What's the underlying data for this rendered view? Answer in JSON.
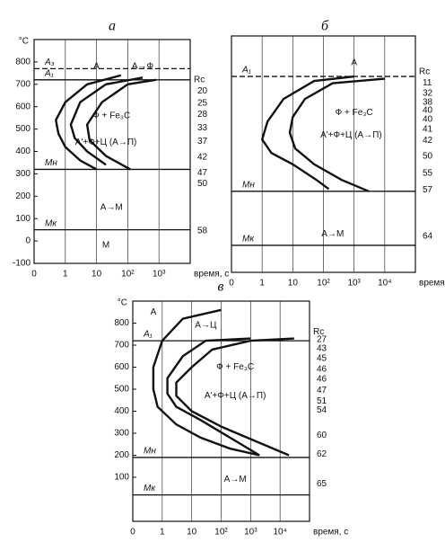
{
  "chart_data": [
    {
      "type": "line",
      "title": "а",
      "ylabel": "°C",
      "xlabel": "время, с",
      "x_origin_label": "0",
      "xscale": "log",
      "xlim": [
        0.1,
        10000
      ],
      "ylim": [
        -100,
        900
      ],
      "xticks": [
        1,
        10,
        {
          "value": 100,
          "label": "10²"
        },
        {
          "value": 1000,
          "label": "10³"
        }
      ],
      "yticks": [
        -100,
        0,
        100,
        200,
        300,
        400,
        500,
        600,
        700,
        800
      ],
      "grid": "x",
      "series": [
        {
          "color": "#111",
          "x": [
            60,
            5,
            1,
            0.5,
            0.6,
            1,
            3,
            10
          ],
          "values": [
            740,
            700,
            620,
            540,
            480,
            420,
            360,
            320
          ]
        },
        {
          "color": "#111",
          "x": [
            300,
            20,
            3,
            1.5,
            2,
            5,
            20
          ],
          "values": [
            730,
            700,
            620,
            520,
            460,
            400,
            340
          ]
        },
        {
          "color": "#111",
          "x": [
            800,
            100,
            15,
            5,
            6,
            20,
            120
          ],
          "values": [
            720,
            700,
            620,
            520,
            450,
            380,
            320
          ]
        }
      ],
      "hlines": [
        {
          "value": 770,
          "label": "A₃",
          "dash": true
        },
        {
          "value": 720,
          "label": "A₁",
          "dash": false
        },
        {
          "value": 320,
          "label": "Mн",
          "dash": false
        },
        {
          "value": 50,
          "label": "Mк",
          "dash": false
        }
      ],
      "annotations": [
        {
          "text": "А",
          "x": 10,
          "y": 780
        },
        {
          "text": "А→Ф",
          "x": 300,
          "y": 780
        },
        {
          "text": "Ф + Fe₃C",
          "x": 30,
          "y": 560
        },
        {
          "text": "А'+Ф+Ц (А→П)",
          "x": 20,
          "y": 440
        },
        {
          "text": "А→М",
          "x": 30,
          "y": 150
        },
        {
          "text": "М",
          "x": 20,
          "y": -20
        }
      ],
      "hardness": {
        "title": "Rc",
        "title_y": 720,
        "values": [
          20,
          25,
          28,
          33,
          37,
          42,
          47,
          50,
          58
        ],
        "y": [
          670,
          615,
          565,
          505,
          445,
          375,
          305,
          255,
          45
        ]
      }
    },
    {
      "type": "line",
      "title": "б",
      "xlabel": "время, с",
      "x_origin_label": "0",
      "xscale": "log",
      "xlim": [
        0.1,
        100000
      ],
      "ylim": [
        -150,
        900
      ],
      "xticks": [
        1,
        10,
        {
          "value": 100,
          "label": "10²"
        },
        {
          "value": 1000,
          "label": "10³"
        },
        {
          "value": 10000,
          "label": "10⁴"
        }
      ],
      "grid": "x",
      "series": [
        {
          "color": "#111",
          "x": [
            1000,
            50,
            5,
            1.5,
            1,
            2,
            10,
            60,
            150
          ],
          "values": [
            720,
            700,
            620,
            520,
            440,
            380,
            330,
            260,
            220
          ]
        },
        {
          "color": "#111",
          "x": [
            10000,
            200,
            25,
            10,
            8,
            12,
            50,
            400,
            3000
          ],
          "values": [
            710,
            690,
            620,
            540,
            470,
            400,
            330,
            260,
            210
          ]
        }
      ],
      "hlines": [
        {
          "value": 720,
          "label": "A₁",
          "dash": true
        },
        {
          "value": 210,
          "label": "Mн",
          "dash": false
        },
        {
          "value": -30,
          "label": "Mк",
          "dash": false
        }
      ],
      "annotations": [
        {
          "text": "А",
          "x": 1000,
          "y": 780
        },
        {
          "text": "Ф + Fe₃C",
          "x": 1000,
          "y": 560
        },
        {
          "text": "А'+Ф+Ц (А→П)",
          "x": 800,
          "y": 460
        },
        {
          "text": "А→М",
          "x": 200,
          "y": 20
        }
      ],
      "hardness": {
        "title": "Rc",
        "title_y": 740,
        "values": [
          11,
          32,
          38,
          40,
          40,
          41,
          42,
          50,
          55,
          57,
          64
        ],
        "y": [
          690,
          645,
          605,
          570,
          530,
          485,
          435,
          365,
          290,
          215,
          10
        ]
      }
    },
    {
      "type": "line",
      "title": "в",
      "ylabel": "°C",
      "xlabel": "время, с",
      "x_origin_label": "0",
      "xscale": "log",
      "xlim": [
        0.1,
        100000
      ],
      "ylim": [
        -100,
        900
      ],
      "xticks": [
        1,
        10,
        {
          "value": 100,
          "label": "10²"
        },
        {
          "value": 1000,
          "label": "10³"
        },
        {
          "value": 10000,
          "label": "10⁴"
        }
      ],
      "yticks": [
        100,
        200,
        300,
        400,
        500,
        600,
        700,
        800
      ],
      "grid": "x",
      "series": [
        {
          "color": "#111",
          "x": [
            100,
            5,
            1,
            0.5,
            0.5,
            0.7,
            3,
            20,
            200,
            2000
          ],
          "values": [
            860,
            820,
            720,
            600,
            500,
            420,
            340,
            280,
            230,
            200
          ]
        },
        {
          "color": "#111",
          "x": [
            1000,
            30,
            5,
            1.5,
            1.5,
            3,
            20,
            200,
            2000
          ],
          "values": [
            730,
            720,
            650,
            550,
            480,
            420,
            360,
            280,
            200
          ]
        },
        {
          "color": "#111",
          "x": [
            30000,
            1000,
            50,
            10,
            3,
            3,
            10,
            100,
            20000
          ],
          "values": [
            730,
            720,
            680,
            600,
            530,
            470,
            400,
            330,
            200
          ]
        }
      ],
      "hlines": [
        {
          "value": 720,
          "label": "A₁",
          "dash": false
        },
        {
          "value": 190,
          "label": "Mн",
          "dash": false
        },
        {
          "value": 20,
          "label": "Mк",
          "dash": false
        }
      ],
      "annotations": [
        {
          "text": "А",
          "x": 0.5,
          "y": 850
        },
        {
          "text": "А→Ц",
          "x": 30,
          "y": 790
        },
        {
          "text": "Ф + Fe₃C",
          "x": 300,
          "y": 600
        },
        {
          "text": "А'+Ф+Ц (А→П)",
          "x": 300,
          "y": 470
        },
        {
          "text": "А→М",
          "x": 300,
          "y": 90
        }
      ],
      "hardness": {
        "title": "Rc",
        "title_y": 760,
        "values": [
          27,
          43,
          45,
          46,
          46,
          47,
          51,
          54,
          60,
          62,
          65
        ],
        "y": [
          725,
          685,
          640,
          590,
          545,
          495,
          445,
          405,
          290,
          205,
          70
        ]
      }
    }
  ]
}
